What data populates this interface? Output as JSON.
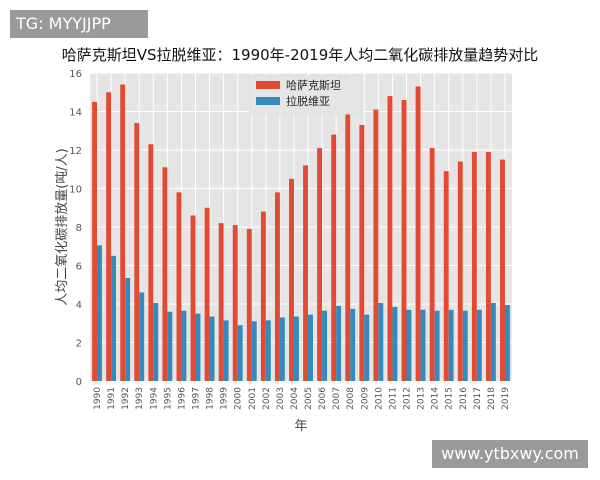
{
  "watermarks": {
    "top_left": "TG: MYYJJPP",
    "bottom_right": "www.ytbxwy.com"
  },
  "chart_data": {
    "type": "bar",
    "title": "哈萨克斯坦VS拉脱维亚：1990年-2019年人均二氧化碳排放量趋势对比",
    "xlabel": "年",
    "ylabel": "人均二氧化碳排放量(吨/人)",
    "ylim": [
      0,
      16
    ],
    "yticks": [
      0,
      2,
      4,
      6,
      8,
      10,
      12,
      14,
      16
    ],
    "grid": true,
    "legend": "top-center",
    "categories": [
      "1990",
      "1991",
      "1992",
      "1993",
      "1994",
      "1995",
      "1996",
      "1997",
      "1998",
      "1999",
      "2000",
      "2001",
      "2002",
      "2003",
      "2004",
      "2005",
      "2006",
      "2007",
      "2008",
      "2009",
      "2010",
      "2011",
      "2012",
      "2013",
      "2014",
      "2015",
      "2016",
      "2017",
      "2018",
      "2019"
    ],
    "series": [
      {
        "name": "哈萨克斯坦",
        "color": "#e24a33",
        "values": [
          14.5,
          15.0,
          15.4,
          13.4,
          12.3,
          11.1,
          9.8,
          8.6,
          9.0,
          8.2,
          8.1,
          7.9,
          8.8,
          9.8,
          10.5,
          11.2,
          12.1,
          12.8,
          14.0,
          13.3,
          14.1,
          14.8,
          14.6,
          15.3,
          12.1,
          10.9,
          11.4,
          11.9,
          11.9,
          11.5
        ]
      },
      {
        "name": "拉脱维亚",
        "color": "#348abd",
        "values": [
          7.05,
          6.5,
          5.35,
          4.6,
          4.05,
          3.6,
          3.65,
          3.5,
          3.35,
          3.15,
          2.9,
          3.1,
          3.15,
          3.3,
          3.35,
          3.45,
          3.65,
          3.9,
          3.75,
          3.45,
          4.05,
          3.85,
          3.7,
          3.7,
          3.65,
          3.7,
          3.65,
          3.7,
          4.05,
          3.95
        ]
      }
    ]
  }
}
